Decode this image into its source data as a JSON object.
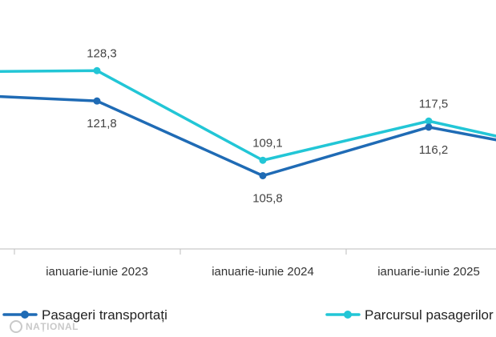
{
  "chart_data": {
    "type": "line",
    "categories": [
      "",
      "ianuarie-iunie 2023",
      "ianuarie-iunie 2024",
      "ianuarie-iunie 2025",
      ""
    ],
    "series": [
      {
        "name": "Pasageri transportați",
        "color": "#1f6bb5",
        "values": [
          123.5,
          121.8,
          105.8,
          116.2,
          109.5
        ]
      },
      {
        "name": "Parcursul pasagerilor",
        "color": "#22c6d6",
        "values": [
          128.0,
          128.3,
          109.1,
          117.5,
          109.6
        ]
      }
    ],
    "data_labels": {
      "Pasageri transportați": [
        "",
        "121,8",
        "105,8",
        "116,2",
        ""
      ],
      "Parcursul pasagerilor": [
        "",
        "128,3",
        "109,1",
        "117,5",
        ""
      ]
    },
    "ylim": [
      92,
      140
    ],
    "grid": false,
    "legend": "bottom"
  },
  "legend_items": [
    {
      "label": "Pasageri transportați",
      "color": "#1f6bb5"
    },
    {
      "label": "Parcursul pasagerilor",
      "color": "#22c6d6"
    }
  ],
  "watermark": {
    "text": "NAȚIONAL",
    "color": "#c9c9c9"
  }
}
